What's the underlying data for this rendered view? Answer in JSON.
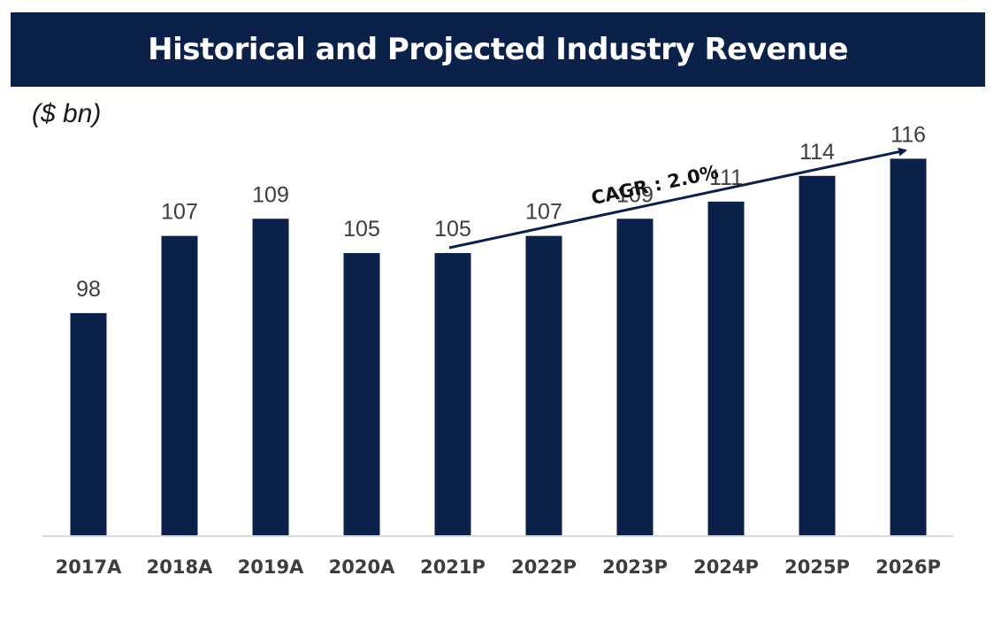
{
  "header": {
    "title": "Historical and Projected Industry Revenue"
  },
  "unit_label": "($ bn)",
  "colors": {
    "bar": "#0b2149",
    "title_bg": "#0b2149",
    "label": "#3d3d3d",
    "axis": "#d9d9d9"
  },
  "chart_data": {
    "type": "bar",
    "title": "Historical and Projected Industry Revenue",
    "ylabel": "($ bn)",
    "xlabel": "",
    "categories": [
      "2017A",
      "2018A",
      "2019A",
      "2020A",
      "2021P",
      "2022P",
      "2023P",
      "2024P",
      "2025P",
      "2026P"
    ],
    "values": [
      98,
      107,
      109,
      105,
      105,
      107,
      109,
      111,
      114,
      116
    ],
    "ylim": [
      72,
      118
    ],
    "grid": false,
    "annotation": {
      "text": "CAGR : 2.0%",
      "from_category": "2021P",
      "to_category": "2026P"
    }
  }
}
